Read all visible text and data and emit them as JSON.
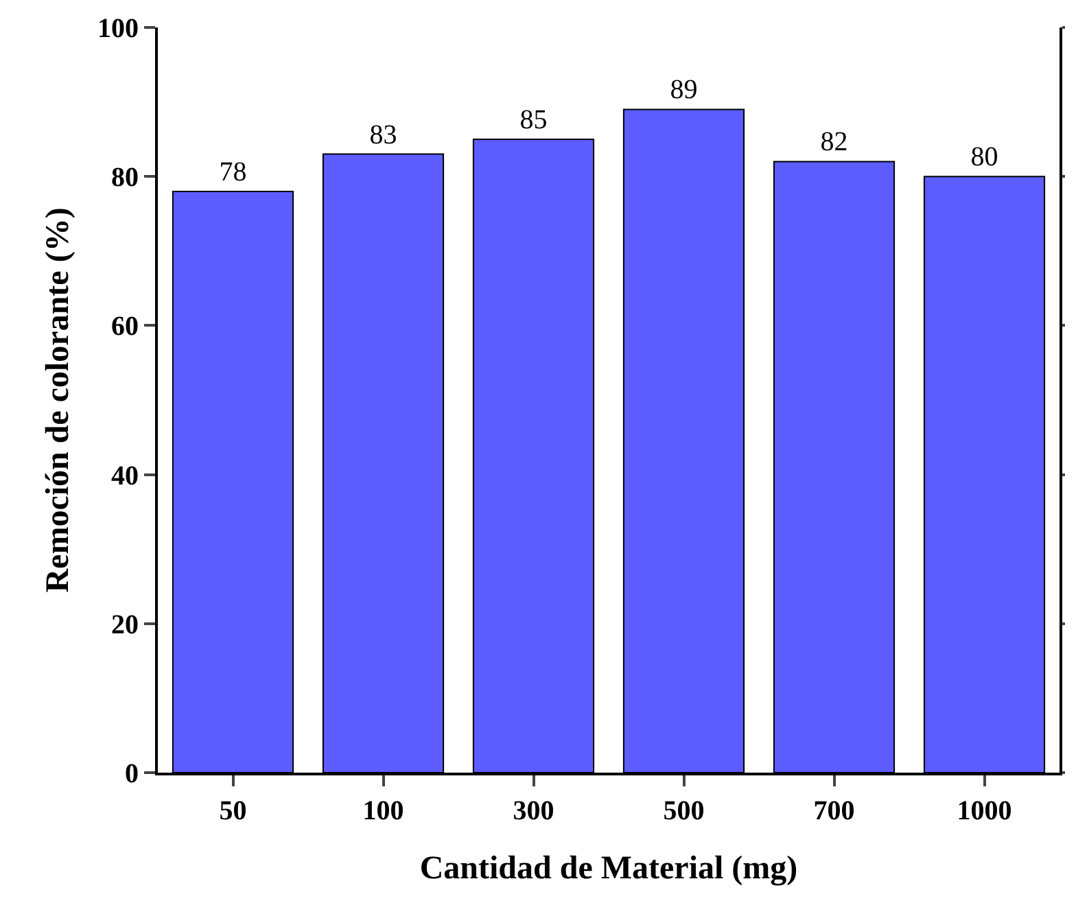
{
  "chart_data": {
    "type": "bar",
    "xlabel": "Cantidad de Material (mg)",
    "ylabel": "Remoción de colorante (%)",
    "categories": [
      "50",
      "100",
      "300",
      "500",
      "700",
      "1000"
    ],
    "values": [
      78,
      83,
      85,
      89,
      82,
      80
    ],
    "color": "#5c5cff",
    "ylim": [
      0,
      100
    ],
    "yticks": [
      0,
      20,
      40,
      60,
      80,
      100
    ],
    "grid": false,
    "legend": false,
    "data_labels": true
  }
}
